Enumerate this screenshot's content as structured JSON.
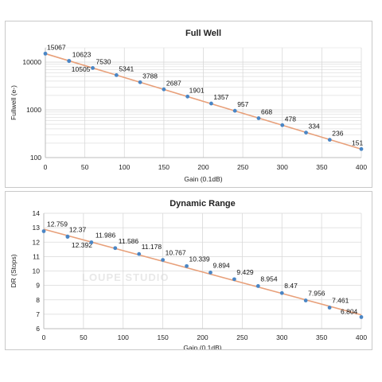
{
  "chart_data": [
    {
      "type": "scatter",
      "title": "Full Well",
      "xlabel": "Gain (0.1dB)",
      "ylabel": "Fullwell (e-)",
      "xlim": [
        0,
        400
      ],
      "ylim": [
        100,
        20000
      ],
      "yscale": "log",
      "xticks": [
        "0",
        "50",
        "100",
        "150",
        "200",
        "250",
        "300",
        "350",
        "400"
      ],
      "yticks": [
        "100",
        "1000",
        "10000"
      ],
      "grid": true,
      "trendline": true,
      "x": [
        0,
        30,
        30,
        60,
        90,
        120,
        150,
        180,
        210,
        240,
        270,
        300,
        330,
        360,
        400
      ],
      "y": [
        15067,
        10623,
        10505,
        7530,
        5341,
        3788,
        2687,
        1901,
        1357,
        957,
        668,
        478,
        334,
        236,
        151
      ],
      "labels": [
        "15067",
        "10623",
        "10505",
        "7530",
        "5341",
        "3788",
        "2687",
        "1901",
        "1357",
        "957",
        "668",
        "478",
        "334",
        "236",
        "151"
      ],
      "colors": {
        "marker": "#4a86c5",
        "trend": "#e8a07a",
        "grid": "#d9d9d9"
      }
    },
    {
      "type": "scatter",
      "title": "Dynamic Range",
      "xlabel": "Gain (0.1dB)",
      "ylabel": "DR (Stops)",
      "xlim": [
        0,
        400
      ],
      "ylim": [
        6,
        14
      ],
      "xticks": [
        "0",
        "50",
        "100",
        "150",
        "200",
        "250",
        "300",
        "350",
        "400"
      ],
      "yticks": [
        "6",
        "7",
        "8",
        "9",
        "10",
        "11",
        "12",
        "13",
        "14"
      ],
      "grid": true,
      "trendline": true,
      "x": [
        0,
        30,
        30,
        60,
        90,
        120,
        150,
        180,
        210,
        240,
        270,
        300,
        330,
        360,
        400
      ],
      "y": [
        12.759,
        12.37,
        12.392,
        11.986,
        11.586,
        11.178,
        10.767,
        10.339,
        9.894,
        9.429,
        8.954,
        8.47,
        7.956,
        7.461,
        6.804
      ],
      "labels": [
        "12.759",
        "12.37",
        "12.392",
        "11.986",
        "11.586",
        "11.178",
        "10.767",
        "10.339",
        "9.894",
        "9.429",
        "8.954",
        "8.47",
        "7.956",
        "7.461",
        "6.804"
      ],
      "watermark": "LOUPE STUDIO",
      "colors": {
        "marker": "#4a86c5",
        "trend": "#e8a07a",
        "grid": "#d9d9d9"
      }
    }
  ]
}
